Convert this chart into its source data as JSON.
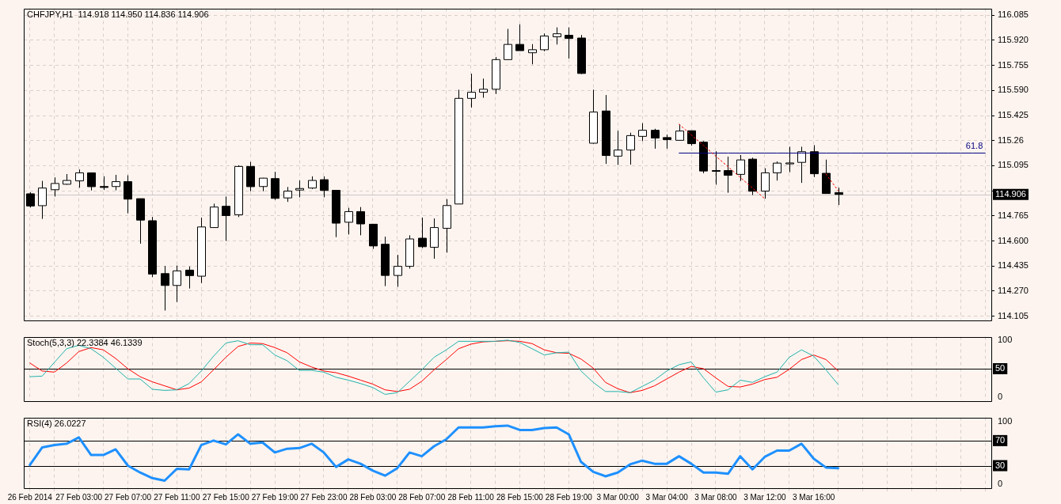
{
  "chart_data": [
    {
      "type": "candlestick",
      "title": "CHFJPY,H1  114.918 114.950 114.836 114.906",
      "categories": [
        null,
        null,
        null,
        null,
        null,
        null,
        null,
        null,
        null,
        null,
        null,
        null,
        null,
        null,
        null,
        null,
        null,
        null,
        null,
        null,
        null,
        null,
        null,
        null,
        null,
        null,
        null,
        null,
        null,
        null,
        null,
        null,
        null,
        null,
        null,
        null,
        null,
        null,
        null,
        null,
        null,
        null,
        null,
        null,
        null,
        null,
        null,
        null,
        null,
        null,
        null,
        null,
        null,
        null,
        null,
        null,
        null,
        null,
        null,
        null,
        null,
        null,
        null,
        null,
        null,
        null,
        null,
        null,
        null,
        null,
        null,
        null,
        null,
        null,
        null,
        null,
        null,
        null,
        null
      ],
      "ohlc": [
        [
          114.91,
          114.92,
          114.82,
          114.83
        ],
        [
          114.832,
          114.995,
          114.745,
          114.948
        ],
        [
          114.937,
          115.018,
          114.892,
          114.978
        ],
        [
          114.973,
          115.04,
          114.97,
          114.998
        ],
        [
          114.995,
          115.07,
          114.95,
          115.048
        ],
        [
          115.048,
          115.05,
          114.932,
          114.957
        ],
        [
          114.958,
          115.025,
          114.935,
          114.952
        ],
        [
          114.958,
          115.035,
          114.933,
          114.99
        ],
        [
          114.99,
          115.032,
          114.782,
          114.875
        ],
        [
          114.878,
          114.878,
          114.582,
          114.737
        ],
        [
          114.733,
          114.758,
          114.362,
          114.382
        ],
        [
          114.385,
          114.435,
          114.142,
          114.307
        ],
        [
          114.307,
          114.438,
          114.198,
          114.403
        ],
        [
          114.408,
          114.432,
          114.287,
          114.372
        ],
        [
          114.368,
          114.753,
          114.323,
          114.692
        ],
        [
          114.688,
          114.845,
          114.688,
          114.823
        ],
        [
          114.828,
          114.892,
          114.6,
          114.767
        ],
        [
          114.772,
          115.098,
          114.757,
          115.09
        ],
        [
          115.09,
          115.12,
          114.927,
          114.957
        ],
        [
          114.958,
          115.015,
          114.927,
          115.013
        ],
        [
          115.01,
          115.055,
          114.87,
          114.88
        ],
        [
          114.883,
          114.955,
          114.857,
          114.928
        ],
        [
          114.935,
          114.998,
          114.887,
          114.945
        ],
        [
          114.948,
          115.025,
          114.942,
          114.998
        ],
        [
          115.003,
          115.025,
          114.887,
          114.932
        ],
        [
          114.933,
          114.935,
          114.625,
          114.717
        ],
        [
          114.723,
          114.818,
          114.642,
          114.793
        ],
        [
          114.793,
          114.823,
          114.637,
          114.712
        ],
        [
          114.71,
          114.712,
          114.548,
          114.567
        ],
        [
          114.578,
          114.628,
          114.303,
          114.373
        ],
        [
          114.373,
          114.508,
          114.298,
          114.433
        ],
        [
          114.433,
          114.637,
          114.418,
          114.613
        ],
        [
          114.618,
          114.753,
          114.553,
          114.562
        ],
        [
          114.558,
          114.748,
          114.483,
          114.688
        ],
        [
          114.683,
          114.875,
          114.523,
          114.833
        ],
        [
          114.843,
          115.595,
          114.843,
          115.538
        ],
        [
          115.538,
          115.7,
          115.477,
          115.578
        ],
        [
          115.578,
          115.668,
          115.542,
          115.598
        ],
        [
          115.598,
          115.81,
          115.567,
          115.793
        ],
        [
          115.793,
          115.995,
          115.793,
          115.893
        ],
        [
          115.893,
          116.025,
          115.852,
          115.852
        ],
        [
          115.838,
          115.895,
          115.762,
          115.858
        ],
        [
          115.858,
          115.965,
          115.848,
          115.948
        ],
        [
          115.943,
          116.005,
          115.892,
          115.963
        ],
        [
          115.953,
          116.005,
          115.8,
          115.932
        ],
        [
          115.935,
          115.955,
          115.698,
          115.702
        ],
        [
          115.243,
          115.595,
          115.24,
          115.448
        ],
        [
          115.455,
          115.56,
          115.107,
          115.162
        ],
        [
          115.158,
          115.325,
          115.1,
          115.198
        ],
        [
          115.198,
          115.312,
          115.102,
          115.293
        ],
        [
          115.288,
          115.375,
          115.257,
          115.328
        ],
        [
          115.328,
          115.338,
          115.207,
          115.277
        ],
        [
          115.28,
          115.3,
          115.207,
          115.267
        ],
        [
          115.262,
          115.368,
          115.262,
          115.323
        ],
        [
          115.325,
          115.325,
          115.227,
          115.24
        ],
        [
          115.25,
          115.257,
          115.045,
          115.06
        ],
        [
          115.063,
          115.19,
          114.97,
          115.062
        ],
        [
          115.063,
          115.155,
          114.917,
          115.032
        ],
        [
          115.038,
          115.165,
          114.995,
          115.133
        ],
        [
          115.138,
          115.148,
          114.902,
          114.927
        ],
        [
          114.928,
          115.078,
          114.878,
          115.048
        ],
        [
          115.048,
          115.123,
          114.997,
          115.112
        ],
        [
          115.107,
          115.22,
          115.052,
          115.113
        ],
        [
          115.117,
          115.22,
          114.982,
          115.187
        ],
        [
          115.187,
          115.23,
          115.02,
          115.042
        ],
        [
          115.045,
          115.135,
          114.912,
          114.912
        ],
        [
          114.918,
          114.95,
          114.836,
          114.906
        ],
        null,
        null,
        null,
        null,
        null,
        null,
        null,
        null,
        null,
        null,
        null,
        null
      ],
      "series": [
        {
          "type": "line",
          "values": [
            null,
            null,
            null,
            null,
            null,
            null,
            null,
            null,
            null,
            null,
            null,
            null,
            null,
            null,
            null,
            null,
            null,
            null,
            null,
            null,
            null,
            null,
            null,
            null,
            null,
            null,
            null,
            null,
            null,
            null,
            null,
            null,
            null,
            null,
            null,
            null,
            null,
            null,
            null,
            null,
            null,
            null,
            null,
            null,
            null,
            null,
            null,
            null,
            null,
            null,
            null,
            null,
            null,
            115.368,
            115.298,
            115.228,
            115.158,
            115.088,
            115.018,
            114.948,
            114.878,
            null,
            null,
            null,
            null,
            null,
            null,
            null,
            null,
            null,
            null,
            null,
            null,
            null,
            null,
            null,
            null,
            null,
            null
          ],
          "color": "#ff0000",
          "line_style": "dotted"
        },
        {
          "type": "line",
          "values": [
            null,
            null,
            null,
            null,
            null,
            null,
            null,
            null,
            null,
            null,
            null,
            null,
            null,
            null,
            null,
            null,
            null,
            null,
            null,
            null,
            null,
            null,
            null,
            null,
            null,
            null,
            null,
            null,
            null,
            null,
            null,
            null,
            null,
            null,
            null,
            null,
            null,
            null,
            null,
            null,
            null,
            null,
            null,
            null,
            null,
            null,
            null,
            null,
            null,
            null,
            null,
            null,
            null,
            null,
            null,
            null,
            null,
            null,
            null,
            null,
            null,
            null,
            null,
            null,
            null,
            115.04,
            114.93,
            null,
            null,
            null,
            null,
            null,
            null,
            null,
            null,
            null,
            null,
            null,
            null
          ],
          "color": "#ff0000",
          "line_style": "dotted"
        },
        {
          "type": "line",
          "name": "61.8",
          "values": [
            null,
            null,
            null,
            null,
            null,
            null,
            null,
            null,
            null,
            null,
            null,
            null,
            null,
            null,
            null,
            null,
            null,
            null,
            null,
            null,
            null,
            null,
            null,
            null,
            null,
            null,
            null,
            null,
            null,
            null,
            null,
            null,
            null,
            null,
            null,
            null,
            null,
            null,
            null,
            null,
            null,
            null,
            null,
            null,
            null,
            null,
            null,
            null,
            null,
            null,
            null,
            null,
            null,
            115.178,
            115.178,
            115.178,
            115.178,
            115.178,
            115.178,
            115.178,
            115.178,
            115.178,
            115.178,
            115.178,
            115.178,
            115.178,
            115.178,
            115.178,
            115.178,
            115.178,
            115.178,
            115.178,
            115.178,
            115.178,
            115.178,
            115.178,
            115.178,
            115.178,
            115.178
          ],
          "color": "#000080",
          "line_style": "solid"
        }
      ],
      "ylim": [
        114.08,
        116.13
      ],
      "yticks": [
        114.105,
        {
          "value": 114.27,
          "label": "114.270"
        },
        114.435,
        {
          "value": 114.6,
          "label": "114.600"
        },
        114.765,
        {
          "value": 114.93,
          "label": null
        },
        115.095,
        115.26,
        115.425,
        {
          "value": 115.59,
          "label": "115.590"
        },
        115.755,
        {
          "value": 115.92,
          "label": "115.920"
        },
        116.085
      ],
      "grid": true,
      "tick_labels": "y",
      "ref_lines": [
        {
          "axis": "y",
          "value": 114.906,
          "label": "114.906",
          "color": "#c8c8c8"
        }
      ]
    },
    {
      "type": "line",
      "title": "Stoch(5,3,3) 22.3384 46.1339",
      "categories": [
        null,
        null,
        null,
        null,
        null,
        null,
        null,
        null,
        null,
        null,
        null,
        null,
        null,
        null,
        null,
        null,
        null,
        null,
        null,
        null,
        null,
        null,
        null,
        null,
        null,
        null,
        null,
        null,
        null,
        null,
        null,
        null,
        null,
        null,
        null,
        null,
        null,
        null,
        null,
        null,
        null,
        null,
        null,
        null,
        null,
        null,
        null,
        null,
        null,
        null,
        null,
        null,
        null,
        null,
        null,
        null,
        null,
        null,
        null,
        null,
        null,
        null,
        null,
        null,
        null,
        null,
        null,
        null,
        null,
        null,
        null,
        null,
        null,
        null,
        null,
        null,
        null,
        null,
        null
      ],
      "series": [
        {
          "color": "#20b2aa",
          "values": [
            36,
            37,
            61,
            85,
            91,
            85,
            70,
            51,
            32,
            32,
            14,
            12,
            13,
            24,
            46,
            72,
            95,
            99,
            92,
            92,
            74,
            64,
            47,
            47,
            44,
            35,
            30,
            24,
            17,
            5,
            8,
            28,
            48,
            70,
            83,
            98,
            98,
            98,
            98,
            100,
            96,
            85,
            74,
            78,
            79,
            46,
            26,
            10,
            10,
            8,
            19,
            30,
            46,
            57,
            62,
            34,
            9,
            13,
            30,
            26,
            36,
            44,
            70,
            83,
            72,
            48,
            22,
            null,
            null,
            null,
            null,
            null,
            null,
            null,
            null,
            null,
            null,
            null,
            null
          ]
        },
        {
          "color": "#ff0000",
          "values": [
            60,
            46,
            44,
            60,
            80,
            87,
            83,
            68,
            50,
            36,
            27,
            20,
            13,
            16,
            27,
            48,
            70,
            89,
            95,
            94,
            87,
            78,
            62,
            53,
            46,
            43,
            37,
            30,
            23,
            13,
            10,
            14,
            28,
            48,
            66,
            85,
            93,
            97,
            98,
            99,
            98,
            94,
            83,
            78,
            77,
            67,
            51,
            26,
            15,
            8,
            12,
            20,
            32,
            44,
            54,
            50,
            34,
            19,
            18,
            23,
            31,
            35,
            49,
            66,
            74,
            66,
            46,
            null,
            null,
            null,
            null,
            null,
            null,
            null,
            null,
            null,
            null,
            null,
            null
          ]
        }
      ],
      "ylim": [
        -6,
        106
      ],
      "yticks": [
        0,
        100
      ],
      "grid": "x",
      "tick_labels": "y",
      "ref_lines": [
        {
          "axis": "y",
          "value": 50,
          "label": "50"
        }
      ]
    },
    {
      "type": "line",
      "title": "RSI(4) 26.0227",
      "categories": [
        "26 Feb 2014",
        null,
        null,
        null,
        "27 Feb 03:00",
        null,
        null,
        null,
        "27 Feb 07:00",
        null,
        null,
        null,
        "27 Feb 11:00",
        null,
        null,
        null,
        "27 Feb 15:00",
        null,
        null,
        null,
        "27 Feb 19:00",
        null,
        null,
        null,
        "27 Feb 23:00",
        null,
        null,
        null,
        "28 Feb 03:00",
        null,
        null,
        null,
        "28 Feb 07:00",
        null,
        null,
        null,
        "28 Feb 11:00",
        null,
        null,
        null,
        "28 Feb 15:00",
        null,
        null,
        null,
        "28 Feb 19:00",
        null,
        null,
        null,
        "3 Mar 00:00",
        null,
        null,
        null,
        "3 Mar 04:00",
        null,
        null,
        null,
        "3 Mar 08:00",
        null,
        null,
        null,
        "3 Mar 12:00",
        null,
        null,
        null,
        "3 Mar 16:00",
        null,
        null,
        null,
        null,
        null,
        null,
        null,
        null,
        null,
        null,
        null,
        null,
        null,
        null
      ],
      "series": [
        {
          "color": "#1e90ff",
          "values": [
            31,
            59,
            63,
            65,
            75,
            47,
            47,
            56,
            30,
            19,
            10,
            6,
            25,
            24,
            63,
            70,
            64,
            80,
            65,
            67,
            51,
            57,
            58,
            65,
            51,
            28,
            40,
            33,
            22,
            14,
            26,
            51,
            45,
            61,
            72,
            91,
            91,
            91,
            93,
            94,
            87,
            87,
            90,
            91,
            80,
            36,
            20,
            13,
            19,
            32,
            38,
            33,
            33,
            45,
            33,
            19,
            19,
            17,
            45,
            24,
            44,
            54,
            54,
            65,
            41,
            27,
            26,
            null,
            null,
            null,
            null,
            null,
            null,
            null,
            null,
            null,
            null,
            null,
            null
          ]
        }
      ],
      "ylim": [
        -6,
        107
      ],
      "yticks": [
        0,
        100
      ],
      "grid": "x",
      "ref_lines": [
        {
          "axis": "y",
          "value": 70,
          "label": "70"
        },
        {
          "axis": "y",
          "value": 30,
          "label": "30"
        }
      ]
    }
  ]
}
